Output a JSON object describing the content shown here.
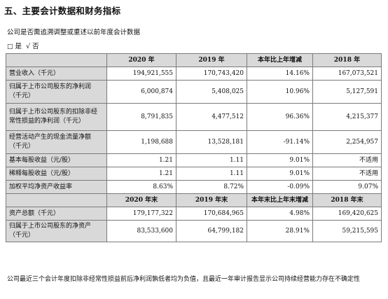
{
  "section_title": "五、主要会计数据和财务指标",
  "question": "公司是否需追溯调整或重述以前年度会计数据",
  "answer": {
    "yes_box": "□",
    "yes_label": "是",
    "no_mark": "√",
    "no_label": "否"
  },
  "table": {
    "headers": [
      "",
      "2020 年",
      "2019 年",
      "本年比上年增减",
      "2018 年"
    ],
    "rows": [
      {
        "label": "营业收入（千元）",
        "values": [
          "194,921,555",
          "170,743,420",
          "14.16%",
          "167,073,521"
        ]
      },
      {
        "label_lines": [
          "归属于上市公司股东的净利润",
          "（千元）"
        ],
        "values": [
          "6,000,874",
          "5,408,025",
          "10.96%",
          "5,127,591"
        ]
      },
      {
        "label_lines": [
          "归属于上市公司股东的扣除非经",
          "常性损益的净利润（千元）"
        ],
        "values": [
          "8,791,835",
          "4,477,512",
          "96.36%",
          "4,215,377"
        ]
      },
      {
        "label_lines": [
          "经营活动产生的现金流量净额",
          "（千元）"
        ],
        "values": [
          "1,198,688",
          "13,528,181",
          "-91.14%",
          "2,254,957"
        ]
      },
      {
        "label": "基本每股收益（元/股）",
        "values": [
          "1.21",
          "1.11",
          "9.01%",
          "不适用"
        ]
      },
      {
        "label": "稀释每股收益（元/股）",
        "values": [
          "1.21",
          "1.11",
          "9.01%",
          "不适用"
        ]
      },
      {
        "label": "加权平均净资产收益率",
        "values": [
          "8.63%",
          "8.72%",
          "-0.09%",
          "9.07%"
        ]
      }
    ],
    "headers2": [
      "",
      "2020 年末",
      "2019 年末",
      "本年末比上年末增减",
      "2018 年末"
    ],
    "rows2": [
      {
        "label": "资产总额（千元）",
        "values": [
          "179,177,322",
          "170,684,965",
          "4.98%",
          "169,420,625"
        ]
      },
      {
        "label_lines": [
          "归属于上市公司股东的净资产",
          "（千元）"
        ],
        "values": [
          "83,533,600",
          "64,799,182",
          "28.91%",
          "59,215,595"
        ]
      }
    ]
  },
  "footnote": "公司最近三个会计年度扣除非经常性损益前后净利润孰低者均为负值，且最近一年审计报告显示公司持续经营能力存在不确定性"
}
